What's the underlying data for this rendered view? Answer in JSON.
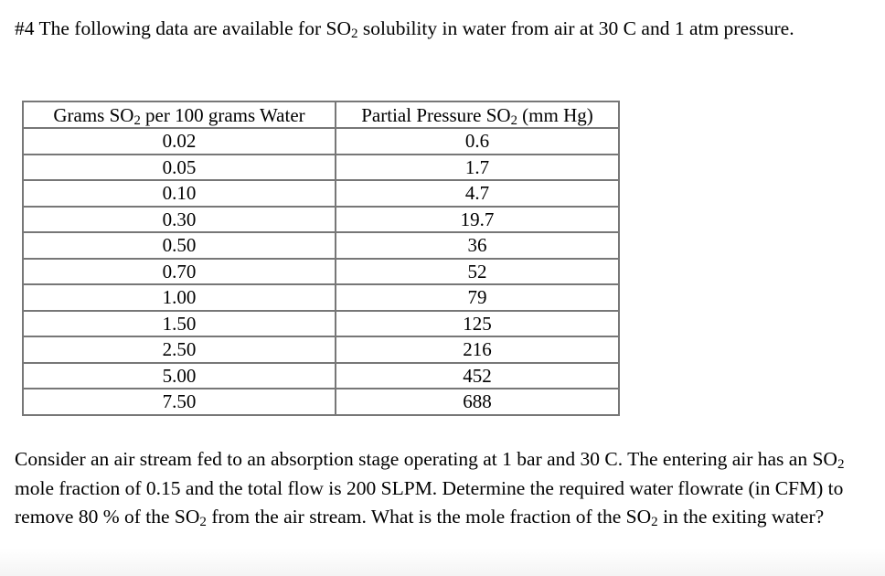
{
  "intro": {
    "text_before_sub": "#4  The following data are available for SO",
    "sub": "2",
    "text_after_sub": " solubility in water from  air at 30 C and 1 atm pressure."
  },
  "table": {
    "headers": [
      {
        "before": "Grams SO",
        "sub": "2",
        "after": " per 100 grams Water"
      },
      {
        "before": "Partial Pressure SO",
        "sub": "2",
        "after": " (mm Hg)"
      }
    ],
    "rows": [
      [
        "0.02",
        "0.6"
      ],
      [
        "0.05",
        "1.7"
      ],
      [
        "0.10",
        "4.7"
      ],
      [
        "0.30",
        "19.7"
      ],
      [
        "0.50",
        "36"
      ],
      [
        "0.70",
        "52"
      ],
      [
        "1.00",
        "79"
      ],
      [
        "1.50",
        "125"
      ],
      [
        "2.50",
        "216"
      ],
      [
        "5.00",
        "452"
      ],
      [
        "7.50",
        "688"
      ]
    ]
  },
  "question": {
    "part1": "Consider an air stream fed to an absorption stage operating at 1 bar and 30 C.  The entering air has an SO",
    "sub1": "2",
    "part2": " mole fraction of 0.15 and the total flow is 200 SLPM.  Determine the required water flowrate  (in CFM) to remove 80 % of the SO",
    "sub2": "2",
    "part3": " from the air stream.  What is the mole fraction of the SO",
    "sub3": "2",
    "part4": " in the exiting water?"
  },
  "colors": {
    "text": "#000000",
    "table_border": "#777777",
    "background": "#ffffff",
    "bottom_fade": "#f4f4f4"
  }
}
